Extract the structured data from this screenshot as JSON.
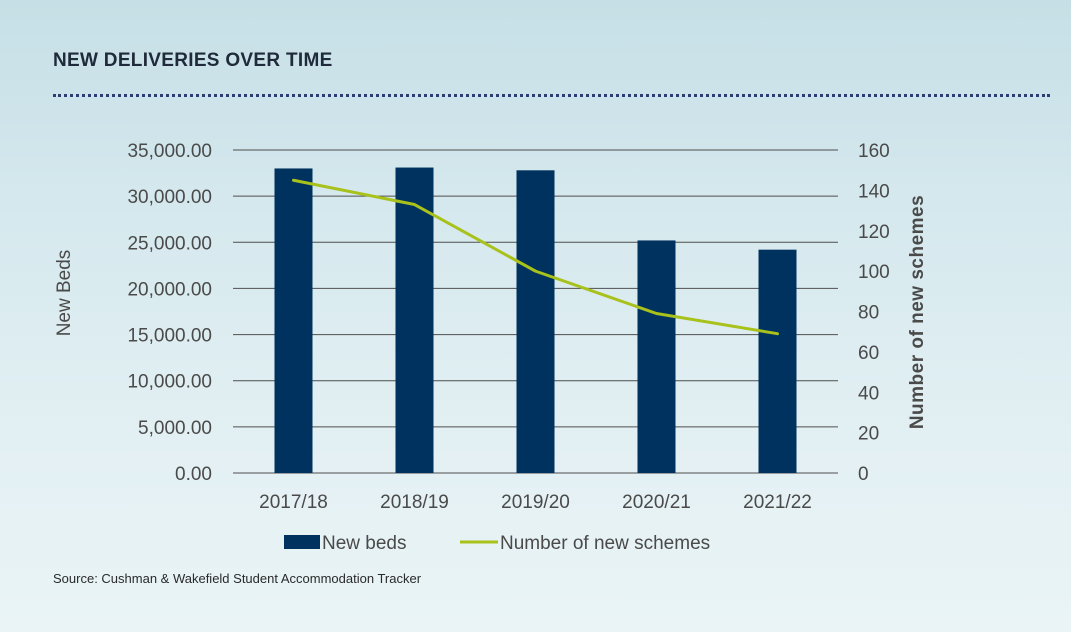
{
  "title": "NEW DELIVERIES OVER TIME",
  "source": "Source: Cushman & Wakefield Student Accommodation Tracker",
  "colors": {
    "bar": "#00325f",
    "line": "#a8c11b",
    "grid": "#4f4f4f",
    "text": "#4a4a4a"
  },
  "chart_data": {
    "type": "bar",
    "categories": [
      "2017/18",
      "2018/19",
      "2019/20",
      "2020/21",
      "2021/22"
    ],
    "series": [
      {
        "name": "New beds",
        "type": "bar",
        "axis": "left",
        "values": [
          33000,
          33100,
          32800,
          25200,
          24200
        ]
      },
      {
        "name": "Number of new schemes",
        "type": "line",
        "axis": "right",
        "values": [
          145,
          133,
          100,
          79,
          69
        ]
      }
    ],
    "ylabel": "New Beds",
    "ylabel_right": "Number of new schemes",
    "ylim": [
      0,
      35000
    ],
    "ylim_right": [
      0,
      160
    ],
    "yticks": [
      "0.00",
      "5,000.00",
      "10,000.00",
      "15,000.00",
      "20,000.00",
      "25,000.00",
      "30,000.00",
      "35,000.00"
    ],
    "yticks_right": [
      "0",
      "20",
      "40",
      "60",
      "80",
      "100",
      "120",
      "140",
      "160"
    ],
    "legend": [
      "New beds",
      "Number of new schemes"
    ],
    "legend_position": "bottom",
    "grid": true
  }
}
